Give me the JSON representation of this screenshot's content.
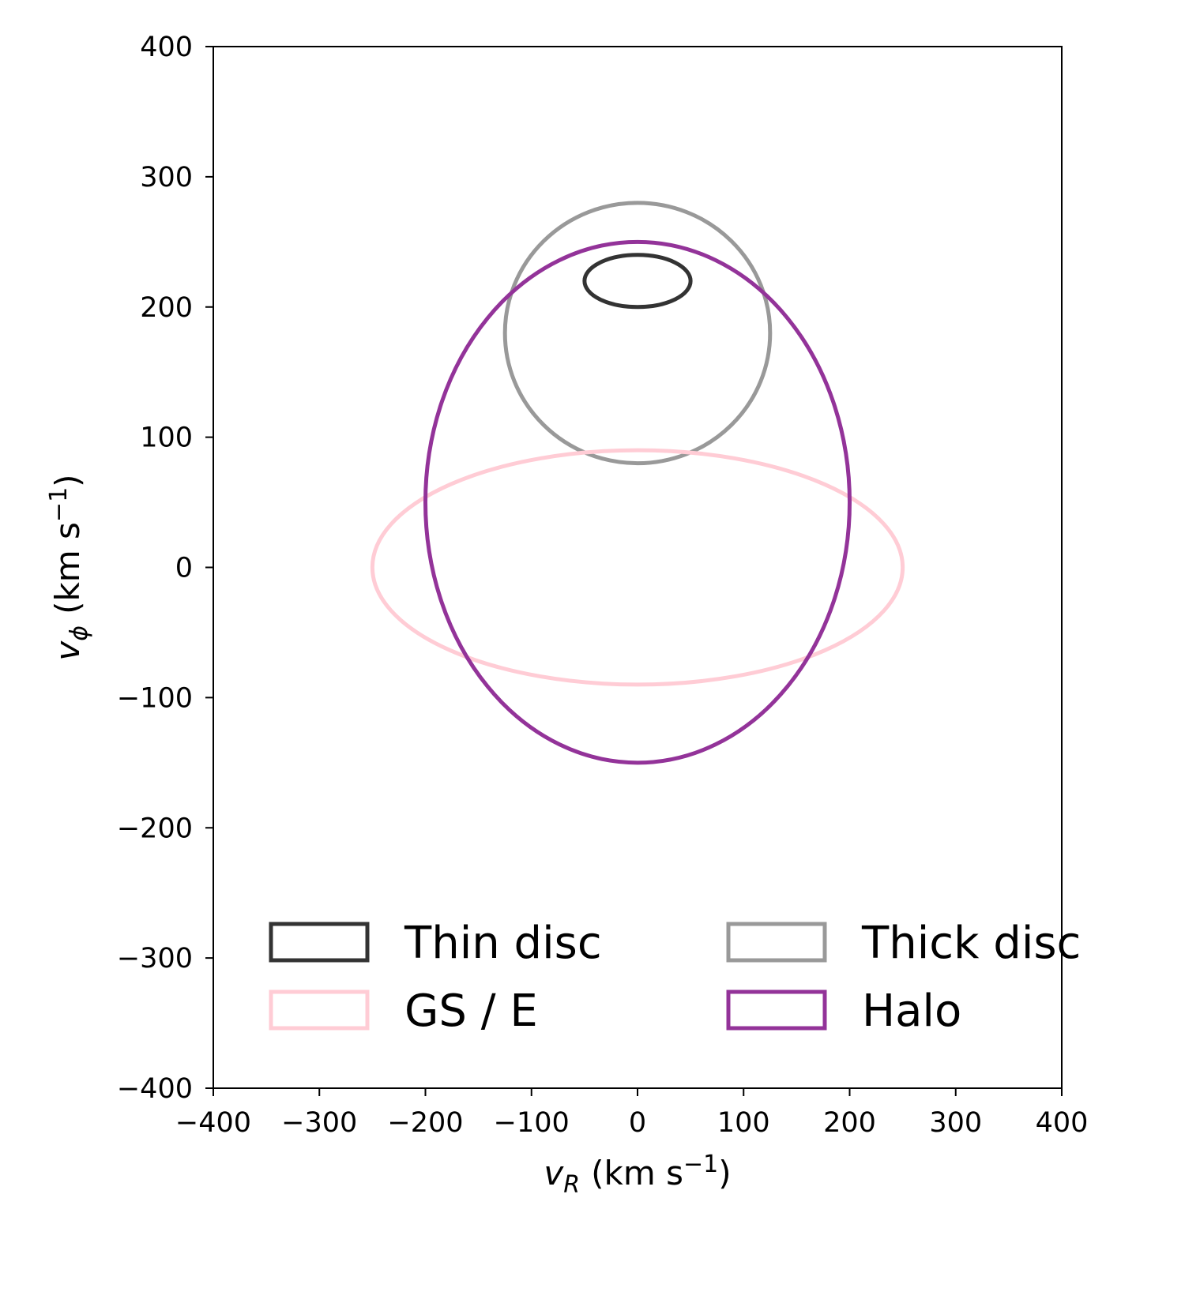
{
  "chart_data": {
    "type": "line",
    "xlabel": {
      "symbol": "v",
      "sub": "R",
      "unit_pre": "(km s",
      "unit_sup": "−1",
      "unit_post": ")"
    },
    "ylabel": {
      "symbol": "v",
      "sub": "ϕ",
      "unit_pre": "(km s",
      "unit_sup": "−1",
      "unit_post": ")"
    },
    "xlim": [
      -400,
      400
    ],
    "ylim": [
      -400,
      400
    ],
    "xticks": [
      -400,
      -300,
      -200,
      -100,
      0,
      100,
      200,
      300,
      400
    ],
    "yticks": [
      -400,
      -300,
      -200,
      -100,
      0,
      100,
      200,
      300,
      400
    ],
    "xtick_labels": [
      "−400",
      "−300",
      "−200",
      "−100",
      "0",
      "100",
      "200",
      "300",
      "400"
    ],
    "ytick_labels": [
      "−400",
      "−300",
      "−200",
      "−100",
      "0",
      "100",
      "200",
      "300",
      "400"
    ],
    "grid": false,
    "legend_position": "lower-center",
    "series": [
      {
        "name": "Thin disc",
        "shape": "ellipse",
        "center": [
          0,
          220
        ],
        "semi_axes": [
          50,
          20
        ],
        "color": "#333333"
      },
      {
        "name": "Thick disc",
        "shape": "ellipse",
        "center": [
          0,
          180
        ],
        "semi_axes": [
          125,
          100
        ],
        "color": "#999999"
      },
      {
        "name": "GS / E",
        "shape": "ellipse",
        "center": [
          0,
          0
        ],
        "semi_axes": [
          250,
          90
        ],
        "color": "#ffccd5"
      },
      {
        "name": "Halo",
        "shape": "ellipse",
        "center": [
          0,
          50
        ],
        "semi_axes": [
          200,
          200
        ],
        "color": "#933399"
      }
    ],
    "legend_order": [
      0,
      2,
      1,
      3
    ]
  }
}
